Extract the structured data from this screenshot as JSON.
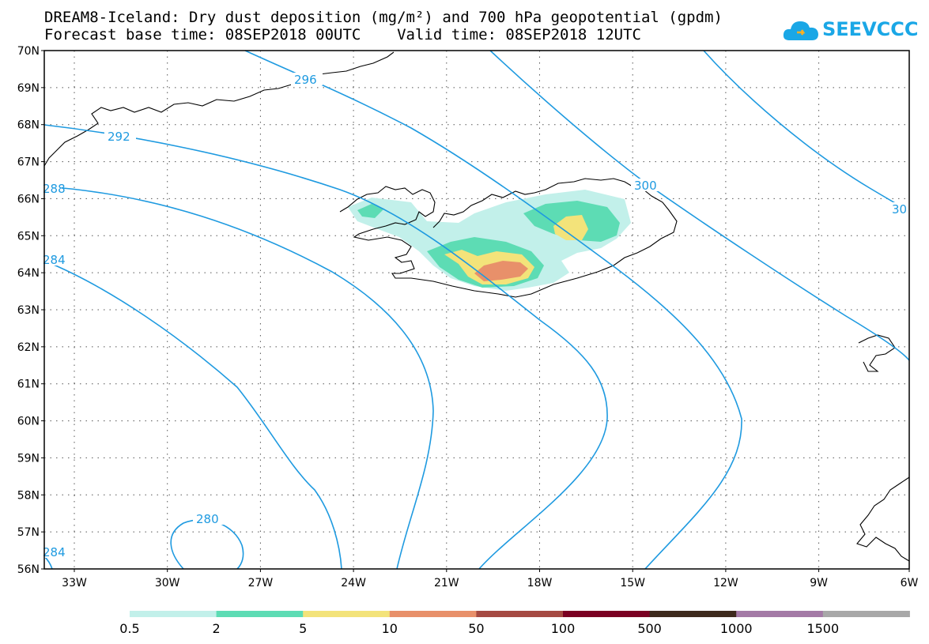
{
  "header": {
    "title_line1": "DREAM8-Iceland: Dry dust deposition (mg/m²) and 700 hPa geopotential (gpdm)",
    "title_line2": "Forecast base time: 08SEP2018 00UTC    Valid time: 08SEP2018 12UTC",
    "logo_text": "SEEVCCC"
  },
  "axes": {
    "lat_labels": [
      "70N",
      "69N",
      "68N",
      "67N",
      "66N",
      "65N",
      "64N",
      "63N",
      "62N",
      "61N",
      "60N",
      "59N",
      "58N",
      "57N",
      "56N"
    ],
    "lon_labels": [
      "33W",
      "30W",
      "27W",
      "24W",
      "21W",
      "18W",
      "15W",
      "12W",
      "9W",
      "6W"
    ]
  },
  "contours": {
    "color": "#1e9ae0",
    "labels": [
      "292",
      "296",
      "288",
      "300",
      "284",
      "280",
      "284",
      "30"
    ]
  },
  "legend": {
    "colors": [
      "#c2f0ea",
      "#5ddcb4",
      "#f3e37a",
      "#e8906a",
      "#a54a42",
      "#7a0022",
      "#3e2a1d",
      "#a47aa6",
      "#a8a8a8"
    ],
    "labels": [
      "0.5",
      "2",
      "5",
      "10",
      "50",
      "100",
      "500",
      "1000",
      "1500"
    ]
  }
}
